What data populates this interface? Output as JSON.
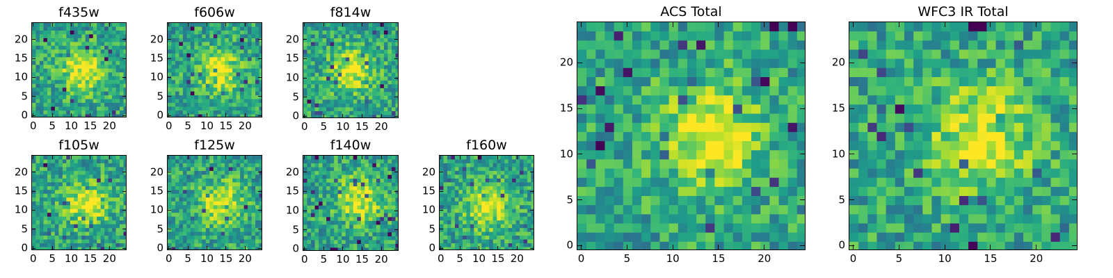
{
  "figure": {
    "panels": [
      {
        "id": "f435w",
        "title": "f435w",
        "hot": {
          "x": 13,
          "y": 12
        },
        "seed": 11
      },
      {
        "id": "f606w",
        "title": "f606w",
        "hot": {
          "x": 13,
          "y": 12
        },
        "seed": 23
      },
      {
        "id": "f814w",
        "title": "f814w",
        "hot": {
          "x": 12,
          "y": 12
        },
        "seed": 37
      },
      {
        "id": "f105w",
        "title": "f105w",
        "hot": {
          "x": 14,
          "y": 12
        },
        "seed": 41
      },
      {
        "id": "f125w",
        "title": "f125w",
        "hot": {
          "x": 14,
          "y": 12
        },
        "seed": 53
      },
      {
        "id": "f140w",
        "title": "f140w",
        "hot": {
          "x": 14,
          "y": 13
        },
        "seed": 67
      },
      {
        "id": "f160w",
        "title": "f160w",
        "hot": {
          "x": 12,
          "y": 11
        },
        "seed": 79
      },
      {
        "id": "acs_total",
        "title": "ACS Total",
        "hot": {
          "x": 14,
          "y": 12
        },
        "seed": 83
      },
      {
        "id": "wfc3_total",
        "title": "WFC3 IR Total",
        "hot": {
          "x": 14,
          "y": 12
        },
        "seed": 97
      }
    ]
  },
  "chart_data": [
    {
      "type": "heatmap",
      "title": "f435w",
      "xlabel": "",
      "ylabel": "",
      "xlim": [
        0,
        24
      ],
      "ylim": [
        0,
        24
      ],
      "xticks": [
        "0",
        "5",
        "10",
        "15",
        "20"
      ],
      "yticks": [
        "0",
        "5",
        "10",
        "15",
        "20"
      ],
      "colormap": "viridis",
      "grid": false
    },
    {
      "type": "heatmap",
      "title": "f606w",
      "xlabel": "",
      "ylabel": "",
      "xlim": [
        0,
        24
      ],
      "ylim": [
        0,
        24
      ],
      "xticks": [
        "0",
        "5",
        "10",
        "15",
        "20"
      ],
      "yticks": [
        "0",
        "5",
        "10",
        "15",
        "20"
      ],
      "colormap": "viridis",
      "grid": false
    },
    {
      "type": "heatmap",
      "title": "f814w",
      "xlabel": "",
      "ylabel": "",
      "xlim": [
        0,
        24
      ],
      "ylim": [
        0,
        24
      ],
      "xticks": [
        "0",
        "5",
        "10",
        "15",
        "20"
      ],
      "yticks": [
        "0",
        "5",
        "10",
        "15",
        "20"
      ],
      "colormap": "viridis",
      "grid": false
    },
    {
      "type": "heatmap",
      "title": "f105w",
      "xlabel": "",
      "ylabel": "",
      "xlim": [
        0,
        24
      ],
      "ylim": [
        0,
        24
      ],
      "xticks": [
        "0",
        "5",
        "10",
        "15",
        "20"
      ],
      "yticks": [
        "0",
        "5",
        "10",
        "15",
        "20"
      ],
      "colormap": "viridis",
      "grid": false
    },
    {
      "type": "heatmap",
      "title": "f125w",
      "xlabel": "",
      "ylabel": "",
      "xlim": [
        0,
        24
      ],
      "ylim": [
        0,
        24
      ],
      "xticks": [
        "0",
        "5",
        "10",
        "15",
        "20"
      ],
      "yticks": [
        "0",
        "5",
        "10",
        "15",
        "20"
      ],
      "colormap": "viridis",
      "grid": false
    },
    {
      "type": "heatmap",
      "title": "f140w",
      "xlabel": "",
      "ylabel": "",
      "xlim": [
        0,
        24
      ],
      "ylim": [
        0,
        24
      ],
      "xticks": [
        "0",
        "5",
        "10",
        "15",
        "20"
      ],
      "yticks": [
        "0",
        "5",
        "10",
        "15",
        "20"
      ],
      "colormap": "viridis",
      "grid": false
    },
    {
      "type": "heatmap",
      "title": "f160w",
      "xlabel": "",
      "ylabel": "",
      "xlim": [
        0,
        24
      ],
      "ylim": [
        0,
        24
      ],
      "xticks": [
        "0",
        "5",
        "10",
        "15",
        "20"
      ],
      "yticks": [
        "0",
        "5",
        "10",
        "15",
        "20"
      ],
      "colormap": "viridis",
      "grid": false
    },
    {
      "type": "heatmap",
      "title": "ACS Total",
      "xlabel": "",
      "ylabel": "",
      "xlim": [
        0,
        24
      ],
      "ylim": [
        0,
        24
      ],
      "xticks": [
        "0",
        "5",
        "10",
        "15",
        "20"
      ],
      "yticks": [
        "0",
        "5",
        "10",
        "15",
        "20"
      ],
      "colormap": "viridis",
      "grid": false
    },
    {
      "type": "heatmap",
      "title": "WFC3 IR Total",
      "xlabel": "",
      "ylabel": "",
      "xlim": [
        0,
        24
      ],
      "ylim": [
        0,
        24
      ],
      "xticks": [
        "0",
        "5",
        "10",
        "15",
        "20"
      ],
      "yticks": [
        "0",
        "5",
        "10",
        "15",
        "20"
      ],
      "colormap": "viridis",
      "grid": false
    }
  ]
}
